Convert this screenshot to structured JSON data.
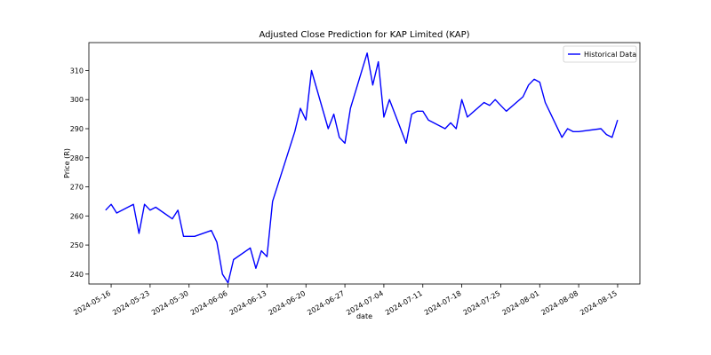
{
  "chart_data": {
    "type": "line",
    "title": "Adjusted Close Prediction for KAP Limited (KAP)",
    "xlabel": "date",
    "ylabel": "Price (R)",
    "ylim": [
      236.6,
      319.6
    ],
    "yticks": [
      240,
      250,
      260,
      270,
      280,
      290,
      300,
      310
    ],
    "xlim": [
      "2024-05-12",
      "2024-08-19"
    ],
    "xticks": [
      "2024-05-16",
      "2024-05-23",
      "2024-05-30",
      "2024-06-06",
      "2024-06-13",
      "2024-06-20",
      "2024-06-27",
      "2024-07-04",
      "2024-07-11",
      "2024-07-18",
      "2024-07-25",
      "2024-08-01",
      "2024-08-08",
      "2024-08-15"
    ],
    "grid": false,
    "legend": {
      "location": "top-right",
      "entries": [
        "Historical Data"
      ]
    },
    "series": [
      {
        "name": "Historical Data",
        "color": "#0000ff",
        "x": [
          "2024-05-15",
          "2024-05-16",
          "2024-05-17",
          "2024-05-20",
          "2024-05-21",
          "2024-05-22",
          "2024-05-23",
          "2024-05-24",
          "2024-05-27",
          "2024-05-28",
          "2024-05-29",
          "2024-05-30",
          "2024-05-31",
          "2024-06-03",
          "2024-06-04",
          "2024-06-05",
          "2024-06-06",
          "2024-06-07",
          "2024-06-10",
          "2024-06-11",
          "2024-06-12",
          "2024-06-13",
          "2024-06-14",
          "2024-06-18",
          "2024-06-19",
          "2024-06-20",
          "2024-06-21",
          "2024-06-24",
          "2024-06-25",
          "2024-06-26",
          "2024-06-27",
          "2024-06-28",
          "2024-07-01",
          "2024-07-02",
          "2024-07-03",
          "2024-07-04",
          "2024-07-05",
          "2024-07-08",
          "2024-07-09",
          "2024-07-10",
          "2024-07-11",
          "2024-07-12",
          "2024-07-15",
          "2024-07-16",
          "2024-07-17",
          "2024-07-18",
          "2024-07-19",
          "2024-07-22",
          "2024-07-23",
          "2024-07-24",
          "2024-07-25",
          "2024-07-26",
          "2024-07-29",
          "2024-07-30",
          "2024-07-31",
          "2024-08-01",
          "2024-08-02",
          "2024-08-05",
          "2024-08-06",
          "2024-08-07",
          "2024-08-08",
          "2024-08-12",
          "2024-08-13",
          "2024-08-14",
          "2024-08-15"
        ],
        "values": [
          262,
          264,
          261,
          264,
          254,
          264,
          262,
          263,
          259,
          262,
          253,
          253,
          253,
          255,
          251,
          240,
          237,
          245,
          249,
          242,
          248,
          246,
          265,
          289,
          297,
          293,
          310,
          290,
          295,
          287,
          285,
          297,
          316,
          305,
          313,
          294,
          300,
          285,
          295,
          296,
          296,
          293,
          290,
          292,
          290,
          300,
          294,
          299,
          298,
          300,
          298,
          296,
          301,
          305,
          307,
          306,
          299,
          287,
          290,
          289,
          289,
          290,
          288,
          287,
          293
        ]
      }
    ]
  }
}
